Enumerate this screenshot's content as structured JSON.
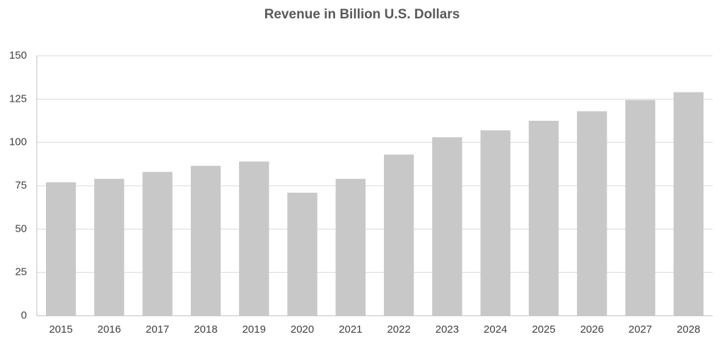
{
  "chart_data": {
    "type": "bar",
    "title": "Revenue in Billion U.S. Dollars",
    "categories": [
      "2015",
      "2016",
      "2017",
      "2018",
      "2019",
      "2020",
      "2021",
      "2022",
      "2023",
      "2024",
      "2025",
      "2026",
      "2027",
      "2028"
    ],
    "values": [
      77,
      79,
      83,
      86.5,
      89,
      71,
      79,
      93,
      103,
      107,
      112.5,
      118,
      124.5,
      129
    ],
    "color": "#c8c8c8",
    "ylim": [
      0,
      150
    ],
    "yticks": [
      0,
      25,
      50,
      75,
      100,
      125,
      150
    ],
    "grid": true
  }
}
